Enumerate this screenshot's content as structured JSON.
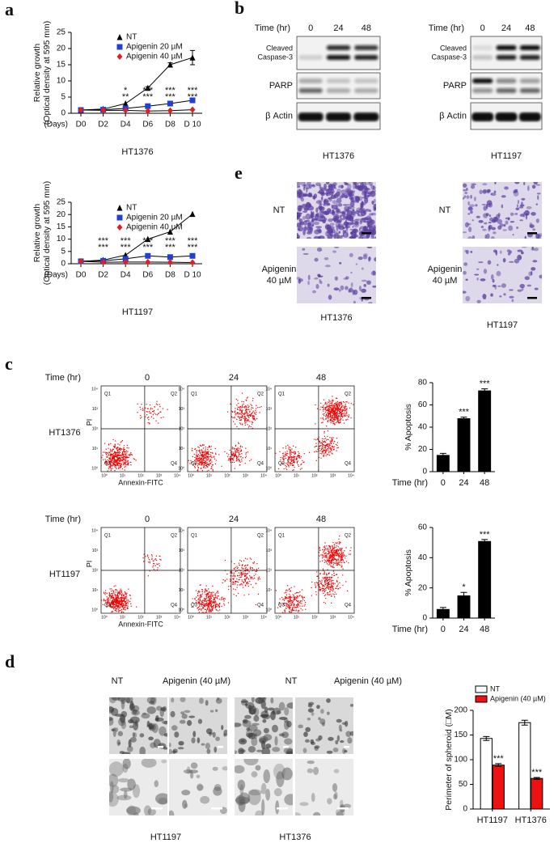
{
  "panel_labels": [
    "a",
    "b",
    "e",
    "c",
    "d"
  ],
  "blots": [
    {
      "time_label": "Time (hr)",
      "times": [
        "0",
        "24",
        "48"
      ],
      "rows": [
        [
          "Cleaved",
          "Caspase-3"
        ],
        [
          "PARP"
        ],
        [
          "β Actin"
        ]
      ],
      "cell_line": "HT1376"
    },
    {
      "time_label": "Time (hr)",
      "times": [
        "0",
        "24",
        "48"
      ],
      "rows": [
        [
          "Cleaved",
          "Caspase-3"
        ],
        [
          "PARP"
        ],
        [
          "β Actin"
        ]
      ],
      "cell_line": "HT1197"
    }
  ],
  "invasion": [
    {
      "cell_line": "HT1376",
      "rows": [
        [
          "NT"
        ],
        [
          "Apigenin",
          "40 µM"
        ]
      ]
    },
    {
      "cell_line": "HT1197",
      "rows": [
        [
          "NT"
        ],
        [
          "Apigenin",
          "40 µM"
        ]
      ]
    }
  ],
  "flow": {
    "time_label": "Time (hr)",
    "times": [
      "0",
      "24",
      "48"
    ],
    "rows": [
      "HT1376",
      "HT1197"
    ],
    "y_label": "PI",
    "x_label": "Annexin-FITC",
    "quadrants": [
      "Q1",
      "Q2",
      "Q3",
      "Q4"
    ],
    "axis_ticks": [
      "10⁰",
      "10¹",
      "10²",
      "10³",
      "10⁴"
    ]
  },
  "spheroid": {
    "headers": [
      "NT",
      "Apigenin (40 µM)",
      "NT",
      "Apigenin (40 µM)"
    ],
    "cell_lines": [
      "HT1197",
      "HT1376"
    ]
  },
  "chart_data": [
    {
      "type": "line",
      "categories": [
        "D0",
        "D2",
        "D4",
        "D6",
        "D8",
        "D 10"
      ],
      "x_prefix": "(Days)",
      "y_label": [
        "Relative growth",
        "(Optical density at 595 mm)"
      ],
      "ylim": [
        0,
        25
      ],
      "yticks": [
        0,
        5,
        10,
        15,
        20,
        25
      ],
      "caption": "HT1376",
      "line_color": "#000000",
      "series": [
        {
          "name": "NT",
          "color": "#000000",
          "marker": "triangle",
          "values": [
            1,
            1.3,
            3,
            7.8,
            15,
            17.2
          ],
          "errors": [
            0,
            0,
            0,
            0.4,
            0.6,
            2.2
          ]
        },
        {
          "name": "Apigenin 20 µM",
          "color": "#1f3fd6",
          "marker": "square",
          "values": [
            1,
            1.1,
            1.5,
            2.2,
            3,
            4
          ]
        },
        {
          "name": "Apigenin 40 µM",
          "color": "#e02020",
          "marker": "diamond",
          "values": [
            1,
            0.9,
            0.9,
            0.7,
            0.8,
            1.1
          ]
        }
      ],
      "annotations": [
        {
          "x": "D4",
          "text": "*",
          "color": "#1f3fd6"
        },
        {
          "x": "D4",
          "text": "**",
          "color": "#e02020"
        },
        {
          "x": "D6",
          "text": "***",
          "color": "#1f3fd6"
        },
        {
          "x": "D6",
          "text": "***",
          "color": "#e02020"
        },
        {
          "x": "D8",
          "text": "***",
          "color": "#1f3fd6"
        },
        {
          "x": "D8",
          "text": "***",
          "color": "#e02020"
        },
        {
          "x": "D 10",
          "text": "***",
          "color": "#1f3fd6"
        },
        {
          "x": "D 10",
          "text": "***",
          "color": "#e02020"
        }
      ]
    },
    {
      "type": "line",
      "categories": [
        "D0",
        "D2",
        "D4",
        "D6",
        "D8",
        "D 10"
      ],
      "x_prefix": "(Days)",
      "y_label": [
        "Relative growth",
        "(Optical density at 595 mm)"
      ],
      "ylim": [
        0,
        25
      ],
      "yticks": [
        0,
        5,
        10,
        15,
        20,
        25
      ],
      "caption": "HT1197",
      "line_color": "#000000",
      "series": [
        {
          "name": "NT",
          "color": "#000000",
          "marker": "triangle",
          "values": [
            1,
            1.5,
            3.5,
            10,
            13,
            20.2
          ]
        },
        {
          "name": "Apigenin 20 µM",
          "color": "#1f3fd6",
          "marker": "square",
          "values": [
            1,
            1.2,
            2,
            3.2,
            2.7,
            3.2
          ]
        },
        {
          "name": "Apigenin 40 µM",
          "color": "#e02020",
          "marker": "diamond",
          "values": [
            1,
            0.6,
            0.7,
            0.7,
            0.6,
            0.5
          ]
        }
      ],
      "annotations": [
        {
          "x": "D2",
          "text": "***",
          "color": "#1f3fd6"
        },
        {
          "x": "D2",
          "text": "***",
          "color": "#e02020"
        },
        {
          "x": "D4",
          "text": "***",
          "color": "#1f3fd6"
        },
        {
          "x": "D4",
          "text": "***",
          "color": "#e02020"
        },
        {
          "x": "D6",
          "text": "***",
          "color": "#1f3fd6"
        },
        {
          "x": "D6",
          "text": "***",
          "color": "#e02020"
        },
        {
          "x": "D8",
          "text": "***",
          "color": "#1f3fd6"
        },
        {
          "x": "D8",
          "text": "***",
          "color": "#e02020"
        },
        {
          "x": "D 10",
          "text": "***",
          "color": "#1f3fd6"
        },
        {
          "x": "D 10",
          "text": "***",
          "color": "#e02020"
        }
      ]
    },
    {
      "type": "bar",
      "categories": [
        "0",
        "24",
        "48"
      ],
      "x_label": "Time (hr)",
      "y_label": "% Apoptosis",
      "color": "#000000",
      "values": [
        15,
        48,
        73
      ],
      "errors": [
        1.5,
        1,
        1.5
      ],
      "ylim": [
        0,
        80
      ],
      "yticks": [
        0,
        20,
        40,
        60,
        80
      ],
      "annotations": [
        {
          "x": "24",
          "text": "***"
        },
        {
          "x": "48",
          "text": "***"
        }
      ]
    },
    {
      "type": "bar",
      "categories": [
        "0",
        "24",
        "48"
      ],
      "x_label": "Time (hr)",
      "y_label": "% Apoptosis",
      "color": "#000000",
      "values": [
        6,
        15,
        51
      ],
      "errors": [
        1,
        2,
        1
      ],
      "ylim": [
        0,
        60
      ],
      "yticks": [
        0,
        20,
        40,
        60
      ],
      "annotations": [
        {
          "x": "24",
          "text": "*"
        },
        {
          "x": "48",
          "text": "***"
        }
      ]
    },
    {
      "type": "grouped_bar",
      "categories": [
        "HT1197",
        "HT1376"
      ],
      "y_label": "Perimeter of spheroid (□M)",
      "ylim": [
        0,
        200
      ],
      "yticks": [
        0,
        50,
        100,
        150,
        200
      ],
      "series": [
        {
          "name": "NT",
          "color": "#ffffff",
          "values": [
            143,
            175
          ],
          "errors": [
            4,
            5
          ]
        },
        {
          "name": "Apigenin (40 µM)",
          "color": "#ee1111",
          "values": [
            89,
            62
          ],
          "errors": [
            3,
            2
          ]
        }
      ],
      "annotations": [
        {
          "x": "HT1197",
          "text": "***"
        },
        {
          "x": "HT1376",
          "text": "***"
        }
      ]
    }
  ]
}
